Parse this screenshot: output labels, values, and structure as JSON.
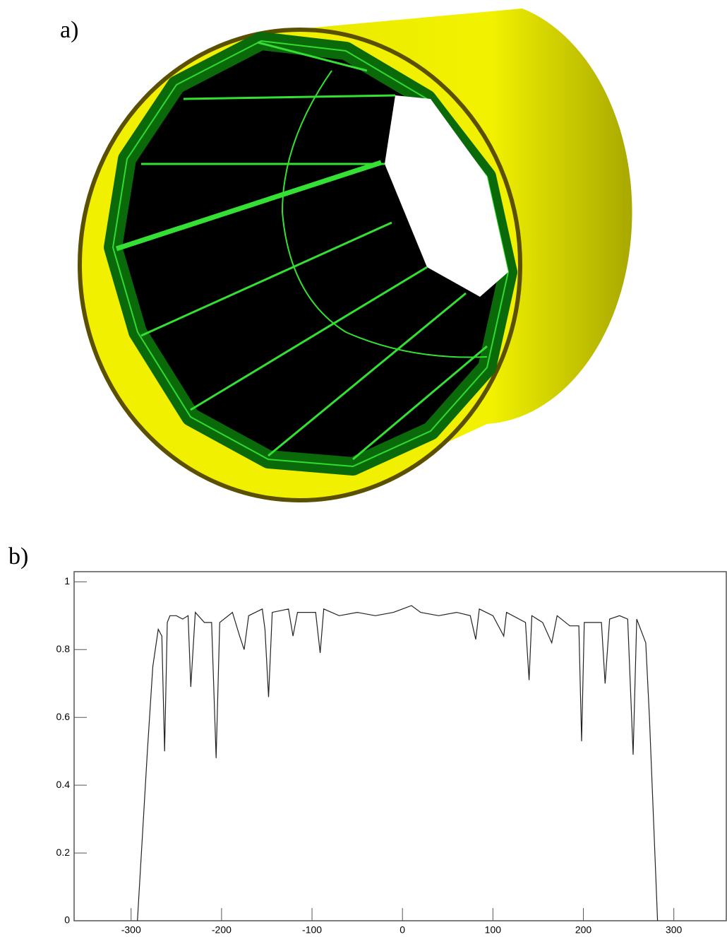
{
  "panels": {
    "a": "a)",
    "b": "b)"
  },
  "chart_data": {
    "type": "line",
    "x": [
      -293,
      -282,
      -276,
      -270,
      -266,
      -263,
      -260,
      -257,
      -250,
      -243,
      -237,
      -234,
      -229,
      -219,
      -211,
      -206,
      -202,
      -188,
      -180,
      -175,
      -170,
      -155,
      -152,
      -148,
      -144,
      -126,
      -121,
      -116,
      -96,
      -91,
      -87,
      -70,
      -50,
      -30,
      -10,
      0,
      10,
      20,
      40,
      60,
      75,
      81,
      85,
      100,
      112,
      115,
      136,
      140,
      143,
      155,
      165,
      171,
      185,
      195,
      198,
      201,
      220,
      224,
      229,
      240,
      249,
      255,
      259,
      269,
      273,
      279,
      282
    ],
    "values": [
      0,
      0.5,
      0.75,
      0.86,
      0.84,
      0.5,
      0.88,
      0.9,
      0.9,
      0.89,
      0.9,
      0.69,
      0.91,
      0.88,
      0.88,
      0.48,
      0.88,
      0.91,
      0.84,
      0.8,
      0.9,
      0.92,
      0.86,
      0.66,
      0.91,
      0.92,
      0.84,
      0.91,
      0.91,
      0.79,
      0.92,
      0.9,
      0.91,
      0.9,
      0.91,
      0.92,
      0.93,
      0.91,
      0.9,
      0.91,
      0.9,
      0.83,
      0.92,
      0.9,
      0.84,
      0.91,
      0.88,
      0.71,
      0.9,
      0.88,
      0.82,
      0.9,
      0.87,
      0.87,
      0.53,
      0.88,
      0.88,
      0.7,
      0.89,
      0.9,
      0.89,
      0.49,
      0.89,
      0.82,
      0.6,
      0.2,
      0
    ],
    "color": "#222222",
    "xlim": [
      -363,
      358
    ],
    "xticks": [
      -300,
      -200,
      -100,
      0,
      100,
      200,
      300
    ],
    "ylim": [
      0,
      1.03
    ],
    "yticks": [
      0,
      0.2,
      0.4,
      0.6,
      0.8,
      1
    ]
  }
}
